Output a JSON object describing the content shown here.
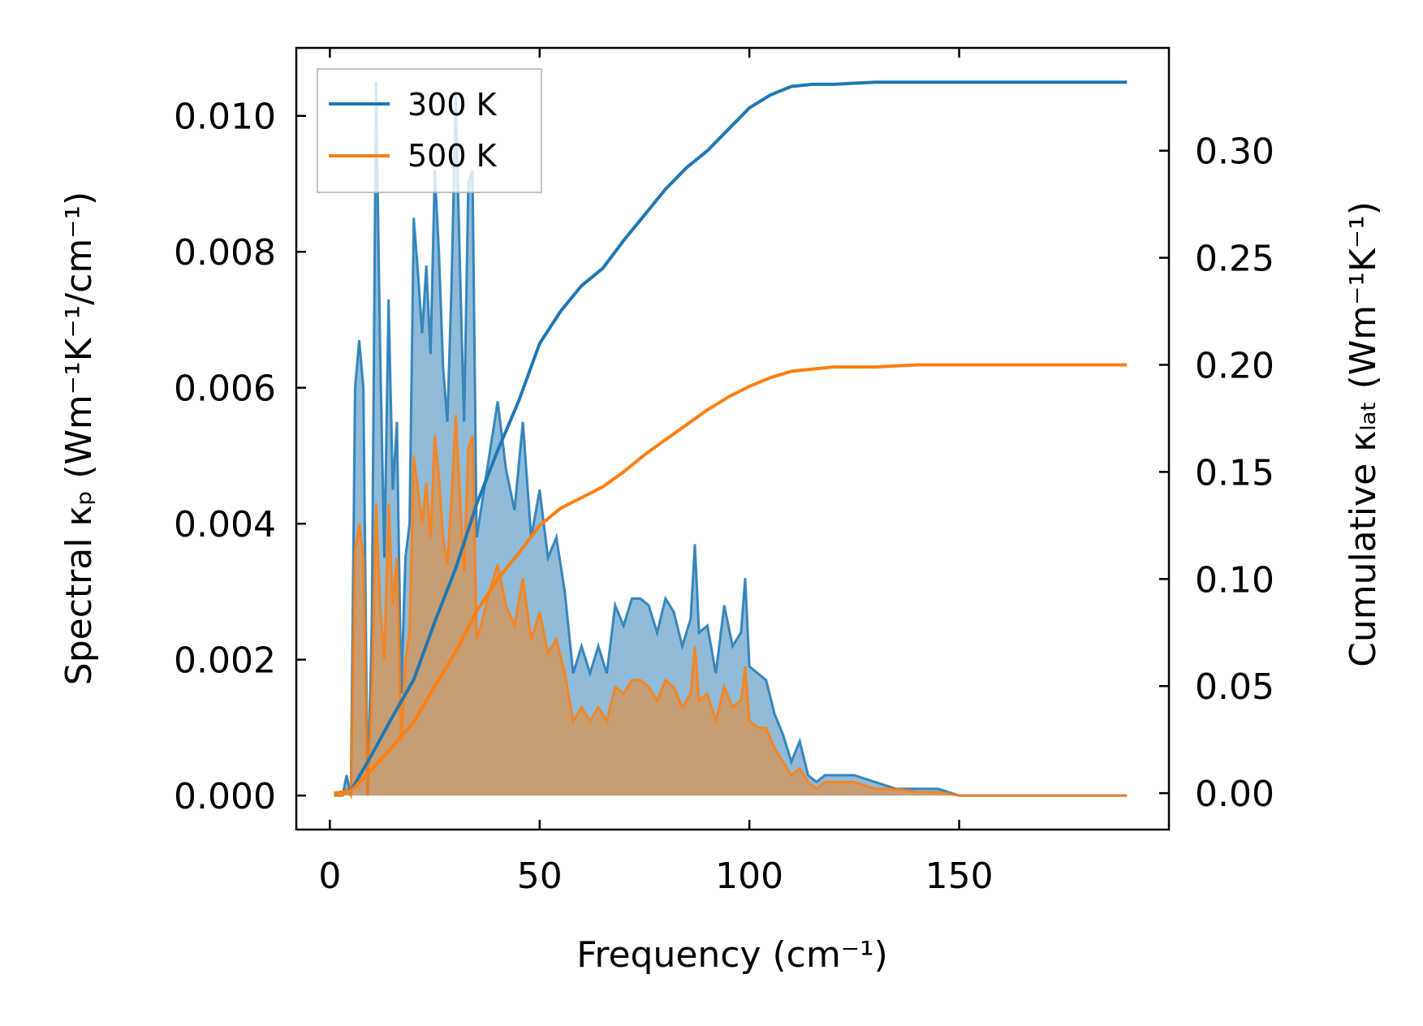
{
  "chart_data": {
    "type": "line",
    "xlabel": "Frequency (cm⁻¹)",
    "ylabel_left": "Spectral κₚ (Wm⁻¹K⁻¹/cm⁻¹)",
    "ylabel_right": "Cumulative κₗₐₜ (Wm⁻¹K⁻¹)",
    "xlim": [
      -8,
      200
    ],
    "ylim_left": [
      -0.0005,
      0.011
    ],
    "ylim_right": [
      -0.017,
      0.348
    ],
    "xticks": [
      0,
      50,
      100,
      150
    ],
    "xtick_labels": [
      "0",
      "50",
      "100",
      "150"
    ],
    "yticks_left": [
      0.0,
      0.002,
      0.004,
      0.006,
      0.008,
      0.01
    ],
    "ytick_labels_left": [
      "0.000",
      "0.002",
      "0.004",
      "0.006",
      "0.008",
      "0.010"
    ],
    "yticks_right": [
      0.0,
      0.05,
      0.1,
      0.15,
      0.2,
      0.25,
      0.3
    ],
    "ytick_labels_right": [
      "0.00",
      "0.05",
      "0.10",
      "0.15",
      "0.20",
      "0.25",
      "0.30"
    ],
    "legend": {
      "placement": "top-left",
      "entries": [
        {
          "name": "300 K",
          "color": "#1f77b4"
        },
        {
          "name": "500 K",
          "color": "#ff7f0e"
        }
      ]
    },
    "spectral": [
      {
        "name": "300 K",
        "color": "#1f77b4",
        "x": [
          1,
          3,
          4,
          5,
          6,
          7,
          8,
          9,
          10,
          11,
          12,
          13,
          14,
          15,
          16,
          17,
          18,
          19,
          20,
          21,
          22,
          23,
          24,
          25,
          26,
          27,
          28,
          29,
          30,
          31,
          32,
          33,
          34,
          35,
          36,
          38,
          40,
          42,
          44,
          46,
          48,
          50,
          52,
          54,
          56,
          58,
          60,
          62,
          64,
          66,
          68,
          70,
          72,
          74,
          76,
          78,
          80,
          82,
          84,
          86,
          87,
          88,
          90,
          92,
          94,
          96,
          98,
          99,
          100,
          102,
          104,
          106,
          108,
          110,
          112,
          114,
          116,
          118,
          120,
          125,
          130,
          135,
          140,
          145,
          150,
          160,
          170,
          180,
          190
        ],
        "y": [
          0,
          0,
          0.0003,
          0,
          0.006,
          0.0067,
          0.006,
          0,
          0.0025,
          0.0105,
          0.0065,
          0.0035,
          0.0073,
          0.0045,
          0.0055,
          0.0015,
          0.0035,
          0.004,
          0.0085,
          0.0077,
          0.0068,
          0.0078,
          0.0065,
          0.0092,
          0.008,
          0.0063,
          0.0055,
          0.0075,
          0.0103,
          0.0078,
          0.0055,
          0.009,
          0.0092,
          0.0038,
          0.0042,
          0.005,
          0.0058,
          0.0048,
          0.0042,
          0.0055,
          0.0038,
          0.0045,
          0.0035,
          0.0038,
          0.003,
          0.0018,
          0.0022,
          0.0018,
          0.0022,
          0.0018,
          0.0028,
          0.0025,
          0.0029,
          0.0029,
          0.0028,
          0.0024,
          0.0029,
          0.0027,
          0.0022,
          0.0026,
          0.0037,
          0.0024,
          0.0025,
          0.0018,
          0.0028,
          0.0022,
          0.0024,
          0.0032,
          0.0019,
          0.0018,
          0.0017,
          0.0012,
          0.0009,
          0.0005,
          0.0008,
          0.0003,
          0.0002,
          0.0003,
          0.0003,
          0.0003,
          0.0002,
          0.0001,
          0.0001,
          0.0001,
          0,
          0,
          0,
          0,
          0
        ]
      },
      {
        "name": "500 K",
        "color": "#ff7f0e",
        "x": [
          1,
          3,
          4,
          5,
          6,
          7,
          8,
          9,
          10,
          11,
          12,
          13,
          14,
          15,
          16,
          17,
          18,
          19,
          20,
          21,
          22,
          23,
          24,
          25,
          26,
          27,
          28,
          29,
          30,
          31,
          32,
          33,
          34,
          35,
          36,
          38,
          40,
          42,
          44,
          46,
          48,
          50,
          52,
          54,
          56,
          58,
          60,
          62,
          64,
          66,
          68,
          70,
          72,
          74,
          76,
          78,
          80,
          82,
          84,
          86,
          87,
          88,
          90,
          92,
          94,
          96,
          98,
          99,
          100,
          102,
          104,
          106,
          108,
          110,
          112,
          114,
          116,
          118,
          120,
          125,
          130,
          135,
          140,
          145,
          150,
          160,
          170,
          180,
          190
        ],
        "y": [
          0,
          0,
          0.0001,
          0,
          0.0036,
          0.004,
          0.0035,
          0,
          0.0015,
          0.0043,
          0.0028,
          0.002,
          0.0043,
          0.0028,
          0.0035,
          0.0008,
          0.002,
          0.0024,
          0.005,
          0.0045,
          0.004,
          0.0046,
          0.0038,
          0.0053,
          0.0047,
          0.0038,
          0.0034,
          0.0044,
          0.0056,
          0.0044,
          0.0033,
          0.0051,
          0.0053,
          0.0023,
          0.0025,
          0.003,
          0.0034,
          0.0028,
          0.0025,
          0.0032,
          0.0023,
          0.0027,
          0.0021,
          0.0023,
          0.0018,
          0.0011,
          0.0013,
          0.0011,
          0.0013,
          0.0011,
          0.0016,
          0.0015,
          0.0017,
          0.0017,
          0.0016,
          0.0014,
          0.0017,
          0.0016,
          0.0013,
          0.0015,
          0.0022,
          0.0014,
          0.0015,
          0.0011,
          0.0016,
          0.0013,
          0.0014,
          0.0019,
          0.0011,
          0.001,
          0.001,
          0.0007,
          0.0005,
          0.0003,
          0.0004,
          0.0002,
          0.0001,
          0.0002,
          0.0002,
          0.0002,
          0.0001,
          0.0001,
          5e-05,
          5e-05,
          0,
          0,
          0,
          0,
          0
        ]
      }
    ],
    "cumulative": [
      {
        "name": "300 K",
        "color": "#1f77b4",
        "x": [
          1,
          5,
          10,
          15,
          20,
          25,
          30,
          35,
          40,
          45,
          50,
          55,
          60,
          65,
          70,
          75,
          80,
          85,
          90,
          95,
          100,
          105,
          110,
          115,
          120,
          130,
          140,
          150,
          160,
          170,
          180,
          190
        ],
        "y": [
          0,
          0.001,
          0.018,
          0.036,
          0.053,
          0.08,
          0.105,
          0.135,
          0.16,
          0.183,
          0.21,
          0.225,
          0.237,
          0.245,
          0.258,
          0.27,
          0.282,
          0.292,
          0.3,
          0.31,
          0.32,
          0.326,
          0.33,
          0.331,
          0.331,
          0.332,
          0.332,
          0.332,
          0.332,
          0.332,
          0.332,
          0.332
        ]
      },
      {
        "name": "500 K",
        "color": "#ff7f0e",
        "x": [
          1,
          5,
          10,
          15,
          20,
          25,
          30,
          35,
          40,
          45,
          50,
          55,
          60,
          65,
          70,
          75,
          80,
          85,
          90,
          95,
          100,
          105,
          110,
          115,
          120,
          130,
          140,
          150,
          160,
          170,
          180,
          190
        ],
        "y": [
          0,
          0.001,
          0.011,
          0.022,
          0.033,
          0.05,
          0.066,
          0.085,
          0.1,
          0.112,
          0.125,
          0.133,
          0.138,
          0.143,
          0.15,
          0.158,
          0.165,
          0.172,
          0.179,
          0.185,
          0.19,
          0.194,
          0.197,
          0.198,
          0.199,
          0.199,
          0.2,
          0.2,
          0.2,
          0.2,
          0.2,
          0.2
        ]
      }
    ]
  }
}
